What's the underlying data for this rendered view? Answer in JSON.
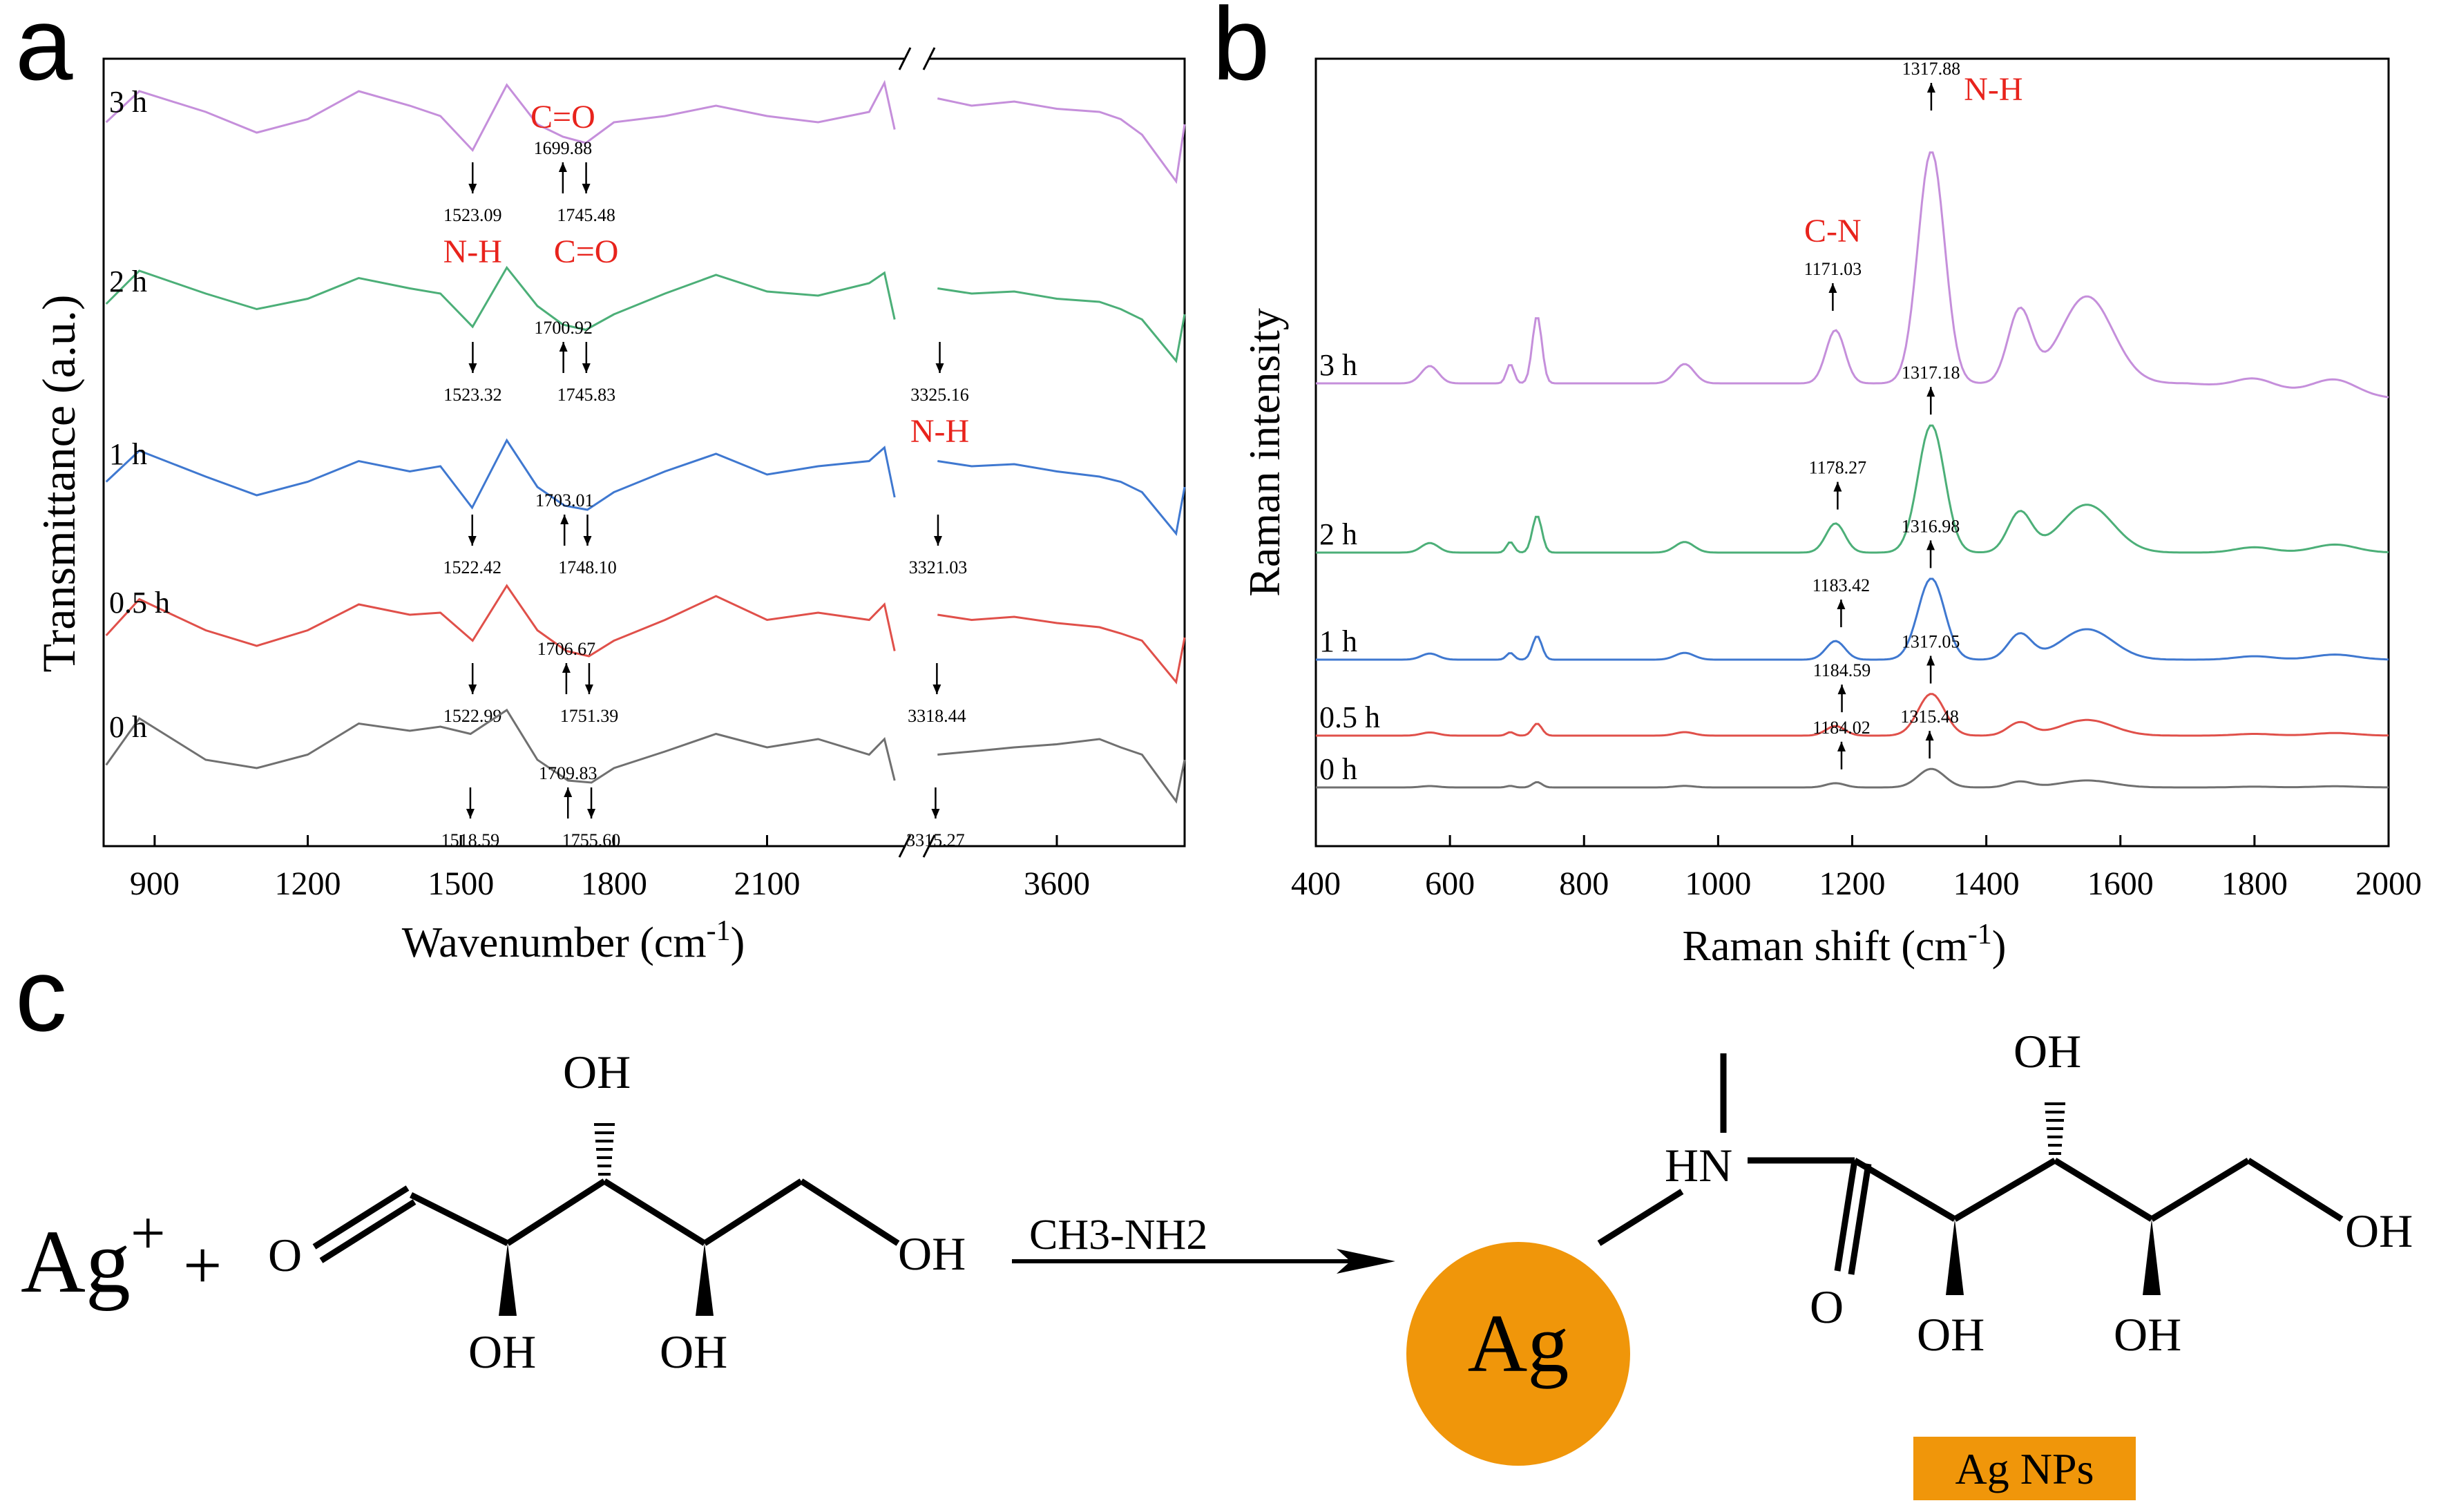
{
  "panels": {
    "a": "a",
    "b": "b",
    "c": "c"
  },
  "chart_data": [
    {
      "type": "line",
      "panel": "a",
      "xlabel": "Wavenumber (cm",
      "xlabel_sup": "-1",
      "xlabel_close": ")",
      "ylabel": "Transmittance (a.u.)",
      "xlim": [
        800,
        3900
      ],
      "axis_break": [
        2370,
        3300
      ],
      "xticks": [
        {
          "value": 900,
          "label": "900"
        },
        {
          "value": 1200,
          "label": "1200"
        },
        {
          "value": 1500,
          "label": "1500"
        },
        {
          "value": 1800,
          "label": "1800"
        },
        {
          "value": 2100,
          "label": "2100"
        },
        {
          "value": 3600,
          "label": "3600"
        }
      ],
      "series": [
        {
          "name": "3 h",
          "color": "#c58fdb",
          "x": [
            805,
            870,
            1000,
            1100,
            1200,
            1300,
            1400,
            1460,
            1523,
            1590,
            1650,
            1700,
            1745,
            1800,
            1900,
            2000,
            2100,
            2200,
            2300,
            2330,
            2350,
            3320,
            3400,
            3500,
            3600,
            3700,
            3750,
            3800,
            3880,
            3900
          ],
          "y": [
            0.62,
            0.92,
            0.72,
            0.52,
            0.65,
            0.92,
            0.78,
            0.68,
            0.35,
            0.98,
            0.6,
            0.48,
            0.42,
            0.62,
            0.68,
            0.78,
            0.68,
            0.62,
            0.72,
            1.0,
            0.55,
            0.85,
            0.78,
            0.82,
            0.75,
            0.72,
            0.65,
            0.5,
            0.05,
            0.6
          ],
          "annotations": [
            {
              "x": 1523.09,
              "label": "1523.09",
              "dir": "down",
              "tag": "N-H"
            },
            {
              "x": 1699.88,
              "label": "1699.88",
              "dir": "up",
              "tag": "C=O"
            },
            {
              "x": 1745.48,
              "label": "1745.48",
              "dir": "down",
              "tag": "C=O"
            }
          ]
        },
        {
          "name": "2 h",
          "color": "#4caf78",
          "x": [
            805,
            870,
            1000,
            1100,
            1200,
            1300,
            1400,
            1460,
            1523,
            1590,
            1650,
            1700,
            1745,
            1800,
            1900,
            2000,
            2100,
            2200,
            2300,
            2330,
            2350,
            3320,
            3400,
            3500,
            3600,
            3700,
            3750,
            3800,
            3880,
            3900
          ],
          "y": [
            0.6,
            0.92,
            0.7,
            0.55,
            0.65,
            0.85,
            0.75,
            0.7,
            0.38,
            0.95,
            0.58,
            0.4,
            0.35,
            0.5,
            0.7,
            0.88,
            0.72,
            0.68,
            0.8,
            0.9,
            0.45,
            0.75,
            0.7,
            0.72,
            0.65,
            0.62,
            0.55,
            0.45,
            0.05,
            0.5
          ],
          "annotations": [
            {
              "x": 1523.32,
              "label": "1523.32",
              "dir": "down"
            },
            {
              "x": 1700.92,
              "label": "1700.92",
              "dir": "up"
            },
            {
              "x": 1745.83,
              "label": "1745.83",
              "dir": "down"
            },
            {
              "x": 3325.16,
              "label": "3325.16",
              "dir": "down",
              "tag": "N-H"
            }
          ]
        },
        {
          "name": "1 h",
          "color": "#3f78d0",
          "x": [
            805,
            870,
            1000,
            1100,
            1200,
            1300,
            1400,
            1460,
            1522,
            1590,
            1650,
            1703,
            1748,
            1800,
            1900,
            2000,
            2100,
            2200,
            2300,
            2330,
            2350,
            3320,
            3400,
            3500,
            3600,
            3700,
            3750,
            3800,
            3880,
            3900
          ],
          "y": [
            0.55,
            0.85,
            0.6,
            0.42,
            0.55,
            0.75,
            0.65,
            0.7,
            0.3,
            0.95,
            0.5,
            0.32,
            0.28,
            0.45,
            0.65,
            0.82,
            0.62,
            0.7,
            0.75,
            0.88,
            0.4,
            0.75,
            0.7,
            0.72,
            0.65,
            0.6,
            0.55,
            0.45,
            0.05,
            0.5
          ],
          "annotations": [
            {
              "x": 1522.42,
              "label": "1522.42",
              "dir": "down"
            },
            {
              "x": 1703.01,
              "label": "1703.01",
              "dir": "up"
            },
            {
              "x": 1748.1,
              "label": "1748.10",
              "dir": "down"
            },
            {
              "x": 3321.03,
              "label": "3321.03",
              "dir": "down"
            }
          ]
        },
        {
          "name": "0.5 h",
          "color": "#e0504a",
          "x": [
            805,
            870,
            1000,
            1100,
            1200,
            1300,
            1400,
            1460,
            1523,
            1590,
            1650,
            1707,
            1751,
            1800,
            1900,
            2000,
            2100,
            2200,
            2300,
            2330,
            2350,
            3320,
            3400,
            3500,
            3600,
            3700,
            3750,
            3800,
            3880,
            3900
          ],
          "y": [
            0.5,
            0.85,
            0.55,
            0.4,
            0.55,
            0.8,
            0.7,
            0.72,
            0.45,
            0.98,
            0.55,
            0.35,
            0.3,
            0.45,
            0.65,
            0.88,
            0.65,
            0.72,
            0.65,
            0.8,
            0.35,
            0.7,
            0.65,
            0.68,
            0.62,
            0.58,
            0.52,
            0.45,
            0.05,
            0.48
          ],
          "annotations": [
            {
              "x": 1522.99,
              "label": "1522.99",
              "dir": "down"
            },
            {
              "x": 1706.67,
              "label": "1706.67",
              "dir": "up"
            },
            {
              "x": 1751.39,
              "label": "1751.39",
              "dir": "down"
            },
            {
              "x": 3318.44,
              "label": "3318.44",
              "dir": "down"
            }
          ]
        },
        {
          "name": "0 h",
          "color": "#707070",
          "x": [
            805,
            870,
            1000,
            1100,
            1200,
            1300,
            1400,
            1460,
            1519,
            1590,
            1650,
            1710,
            1756,
            1800,
            1900,
            2000,
            2100,
            2200,
            2300,
            2330,
            2350,
            3320,
            3400,
            3500,
            3600,
            3700,
            3750,
            3800,
            3880,
            3900
          ],
          "y": [
            0.45,
            0.9,
            0.5,
            0.42,
            0.55,
            0.85,
            0.78,
            0.82,
            0.75,
            0.98,
            0.5,
            0.3,
            0.28,
            0.42,
            0.58,
            0.75,
            0.62,
            0.7,
            0.55,
            0.7,
            0.3,
            0.55,
            0.58,
            0.62,
            0.65,
            0.7,
            0.62,
            0.55,
            0.1,
            0.5
          ],
          "annotations": [
            {
              "x": 1518.59,
              "label": "1518.59",
              "dir": "down"
            },
            {
              "x": 1709.83,
              "label": "1709.83",
              "dir": "up"
            },
            {
              "x": 1755.6,
              "label": "1755.60",
              "dir": "down"
            },
            {
              "x": 3315.27,
              "label": "3315.27",
              "dir": "down"
            }
          ]
        }
      ]
    },
    {
      "type": "line",
      "panel": "b",
      "xlabel": "Raman shift (cm",
      "xlabel_sup": "-1",
      "xlabel_close": ")",
      "ylabel": "Raman intensity",
      "xlim": [
        400,
        2000
      ],
      "xticks": [
        400,
        600,
        800,
        1000,
        1200,
        1400,
        1600,
        1800,
        2000
      ],
      "series": [
        {
          "name": "3 h",
          "color": "#c58fdb",
          "amp": 1.0,
          "tall": true,
          "annotations": [
            {
              "x": 1171.03,
              "label": "1171.03",
              "tag": "C-N"
            },
            {
              "x": 1317.88,
              "label": "1317.88",
              "tag": "N-H"
            }
          ]
        },
        {
          "name": "2 h",
          "color": "#4caf78",
          "amp": 0.55,
          "annotations": [
            {
              "x": 1178.27,
              "label": "1178.27"
            },
            {
              "x": 1317.18,
              "label": "1317.18"
            }
          ]
        },
        {
          "name": "1 h",
          "color": "#3f78d0",
          "amp": 0.35,
          "annotations": [
            {
              "x": 1183.42,
              "label": "1183.42"
            },
            {
              "x": 1316.98,
              "label": "1316.98"
            }
          ]
        },
        {
          "name": "0.5 h",
          "color": "#e0504a",
          "amp": 0.18,
          "annotations": [
            {
              "x": 1184.59,
              "label": "1184.59"
            },
            {
              "x": 1317.05,
              "label": "1317.05"
            }
          ]
        },
        {
          "name": "0 h",
          "color": "#707070",
          "amp": 0.08,
          "annotations": [
            {
              "x": 1184.02,
              "label": "1184.02"
            },
            {
              "x": 1315.48,
              "label": "1315.48"
            }
          ]
        }
      ]
    }
  ],
  "scheme": {
    "ag_ion": "Ag",
    "ag_ion_charge": "+",
    "plus": "+",
    "o_left": "O",
    "oh_top": "OH",
    "oh_right": "OH",
    "oh_bottom_1": "OH",
    "oh_bottom_2": "OH",
    "reagent": "CH3-NH2",
    "ag_particle": "Ag",
    "ag_particle_color": "#f0960a",
    "hn": "HN",
    "o_product": "O",
    "oh_p_top": "OH",
    "oh_p_right": "OH",
    "oh_p_bottom_1": "OH",
    "oh_p_bottom_2": "OH",
    "product_label": "Ag NPs"
  }
}
